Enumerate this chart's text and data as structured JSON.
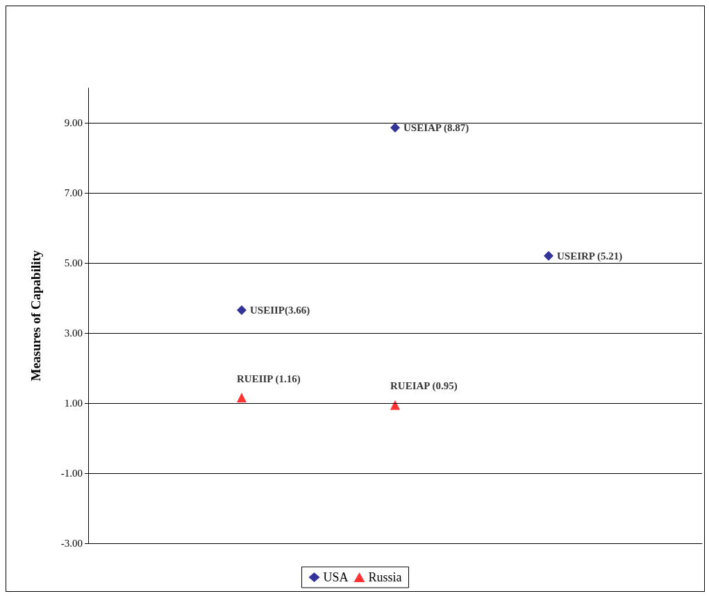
{
  "chart_data": {
    "type": "scatter",
    "ylabel": "Measures of Capability",
    "categories": [
      null,
      null,
      null,
      null,
      null
    ],
    "ylim": [
      -3,
      10
    ],
    "yticks": [
      {
        "value": -3,
        "label": "-3.00"
      },
      {
        "value": -1,
        "label": "-1.00"
      },
      {
        "value": 1,
        "label": "1.00"
      },
      {
        "value": 3,
        "label": "3.00"
      },
      {
        "value": 5,
        "label": "5.00"
      },
      {
        "value": 7,
        "label": "7.00"
      },
      {
        "value": 9,
        "label": "9.00"
      }
    ],
    "tick_labels": "y",
    "grid": "y",
    "legend": "bottom",
    "series": [
      {
        "name": "USA",
        "color": "#000080",
        "marker": "diamond",
        "values": [
          null,
          3.66,
          8.87,
          5.21,
          null
        ],
        "value_labels": [
          null,
          "USEIIP(3.66)",
          "USEIAP (8.87)",
          "USEIRP (5.21)",
          null
        ]
      },
      {
        "name": "Russia",
        "color": "#ff0000",
        "marker": "triangle",
        "values": [
          null,
          1.16,
          0.95,
          null,
          null
        ],
        "value_labels": [
          null,
          "RUEIIP (1.16)",
          "RUEIAP (0.95)",
          null,
          null
        ]
      }
    ]
  }
}
